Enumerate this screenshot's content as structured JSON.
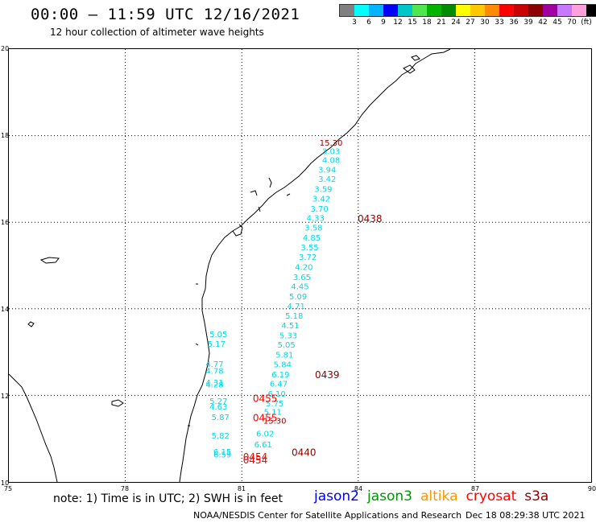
{
  "header": {
    "title": "00:00 – 11:59 UTC 12/16/2021",
    "subtitle": "12 hour collection of altimeter wave heights"
  },
  "legend": {
    "colors": [
      "#808080",
      "#00ffff",
      "#00b4ff",
      "#0000ff",
      "#00c8c8",
      "#50e650",
      "#00b400",
      "#008c00",
      "#ffff00",
      "#ffc800",
      "#ff8c00",
      "#ff0000",
      "#c80000",
      "#8c0000",
      "#a000a0",
      "#c878ff",
      "#ffa0dc",
      "#000000"
    ],
    "labels": [
      "3",
      "6",
      "9",
      "12",
      "15",
      "18",
      "21",
      "24",
      "27",
      "30",
      "33",
      "36",
      "39",
      "42",
      "45",
      "70",
      "(ft)"
    ]
  },
  "axes": {
    "lat_ticks": [
      "20",
      "18",
      "16",
      "14",
      "12",
      "10"
    ],
    "lon_ticks": [
      "75",
      "78",
      "81",
      "84",
      "87",
      "90"
    ]
  },
  "colors": {
    "cyan": "#00d8e8",
    "red": "#ff0000",
    "darkred": "#8c0000"
  },
  "map_data": {
    "lon_range": [
      75,
      90
    ],
    "lat_range": [
      10,
      20
    ],
    "cyan_track": [
      {
        "lon": 83.3,
        "lat": 17.57,
        "v": "3.03"
      },
      {
        "lon": 83.3,
        "lat": 17.37,
        "v": "4.08"
      },
      {
        "lon": 83.2,
        "lat": 17.15,
        "v": "3.94"
      },
      {
        "lon": 83.2,
        "lat": 16.93,
        "v": "3.42"
      },
      {
        "lon": 83.1,
        "lat": 16.7,
        "v": "3.59"
      },
      {
        "lon": 83.05,
        "lat": 16.48,
        "v": "3.42"
      },
      {
        "lon": 83.0,
        "lat": 16.25,
        "v": "3.70"
      },
      {
        "lon": 82.9,
        "lat": 16.03,
        "v": "4.33"
      },
      {
        "lon": 82.85,
        "lat": 15.81,
        "v": "3.58"
      },
      {
        "lon": 82.8,
        "lat": 15.58,
        "v": "4.85"
      },
      {
        "lon": 82.75,
        "lat": 15.35,
        "v": "3.55"
      },
      {
        "lon": 82.7,
        "lat": 15.13,
        "v": "3.72"
      },
      {
        "lon": 82.6,
        "lat": 14.9,
        "v": "4.20"
      },
      {
        "lon": 82.55,
        "lat": 14.67,
        "v": "3.65"
      },
      {
        "lon": 82.5,
        "lat": 14.45,
        "v": "4.45"
      },
      {
        "lon": 82.45,
        "lat": 14.22,
        "v": "5.09"
      },
      {
        "lon": 82.4,
        "lat": 14.0,
        "v": "4.71"
      },
      {
        "lon": 82.35,
        "lat": 13.77,
        "v": "5.18"
      },
      {
        "lon": 82.25,
        "lat": 13.55,
        "v": "4.51"
      },
      {
        "lon": 82.2,
        "lat": 13.32,
        "v": "5.33"
      },
      {
        "lon": 82.15,
        "lat": 13.1,
        "v": "5.05"
      },
      {
        "lon": 82.1,
        "lat": 12.87,
        "v": "5.81"
      },
      {
        "lon": 82.05,
        "lat": 12.65,
        "v": "5.84"
      },
      {
        "lon": 82.0,
        "lat": 12.42,
        "v": "6.19"
      },
      {
        "lon": 81.95,
        "lat": 12.2,
        "v": "6.47"
      },
      {
        "lon": 81.9,
        "lat": 11.97,
        "v": "6.10"
      },
      {
        "lon": 81.85,
        "lat": 11.75,
        "v": "5.75"
      },
      {
        "lon": 81.8,
        "lat": 11.55,
        "v": "5.11"
      },
      {
        "lon": 81.6,
        "lat": 11.05,
        "v": "6.02"
      },
      {
        "lon": 81.55,
        "lat": 10.8,
        "v": "6.61"
      },
      {
        "lon": 80.4,
        "lat": 13.35,
        "v": "5.05"
      },
      {
        "lon": 80.35,
        "lat": 13.12,
        "v": "5.17"
      },
      {
        "lon": 80.3,
        "lat": 12.66,
        "v": "4.77"
      },
      {
        "lon": 80.3,
        "lat": 12.5,
        "v": "4.78"
      },
      {
        "lon": 80.3,
        "lat": 12.23,
        "v": "4.31"
      },
      {
        "lon": 80.3,
        "lat": 12.18,
        "v": "4.28"
      },
      {
        "lon": 80.4,
        "lat": 11.8,
        "v": "5.27"
      },
      {
        "lon": 80.4,
        "lat": 11.67,
        "v": "4.63"
      },
      {
        "lon": 80.45,
        "lat": 11.43,
        "v": "5.87"
      },
      {
        "lon": 80.45,
        "lat": 11.0,
        "v": "5.82"
      },
      {
        "lon": 80.5,
        "lat": 10.63,
        "v": "6.15"
      },
      {
        "lon": 80.5,
        "lat": 10.57,
        "v": "6.59"
      }
    ],
    "darkred_values": [
      {
        "lon": 83.3,
        "lat": 17.77,
        "v": "15.30"
      },
      {
        "lon": 81.85,
        "lat": 11.35,
        "v": "15.30"
      }
    ],
    "pass_labels": [
      {
        "lon": 84.3,
        "lat": 16.0,
        "t": "0438",
        "c": "darkred"
      },
      {
        "lon": 83.2,
        "lat": 12.4,
        "t": "0439",
        "c": "darkred"
      },
      {
        "lon": 82.6,
        "lat": 10.6,
        "t": "0440",
        "c": "darkred"
      },
      {
        "lon": 81.6,
        "lat": 11.85,
        "t": "0455",
        "c": "red"
      },
      {
        "lon": 81.6,
        "lat": 11.4,
        "t": "0455",
        "c": "red"
      },
      {
        "lon": 81.35,
        "lat": 10.5,
        "t": "0454",
        "c": "red"
      },
      {
        "lon": 81.35,
        "lat": 10.43,
        "t": "0454",
        "c": "red"
      }
    ]
  },
  "footer": {
    "note": "note: 1) Time is in UTC; 2) SWH is in feet",
    "satellites": [
      {
        "name": "jason2",
        "color": "#0000e6"
      },
      {
        "name": "jason3",
        "color": "#009600"
      },
      {
        "name": "altika",
        "color": "#ff9600"
      },
      {
        "name": "cryosat",
        "color": "#ff0000"
      },
      {
        "name": "s3a",
        "color": "#8c0000"
      }
    ],
    "agency": "NOAA/NESDIS Center for Satellite Applications and Research",
    "timestamp": "Dec 18 08:29:38 UTC 2021"
  }
}
